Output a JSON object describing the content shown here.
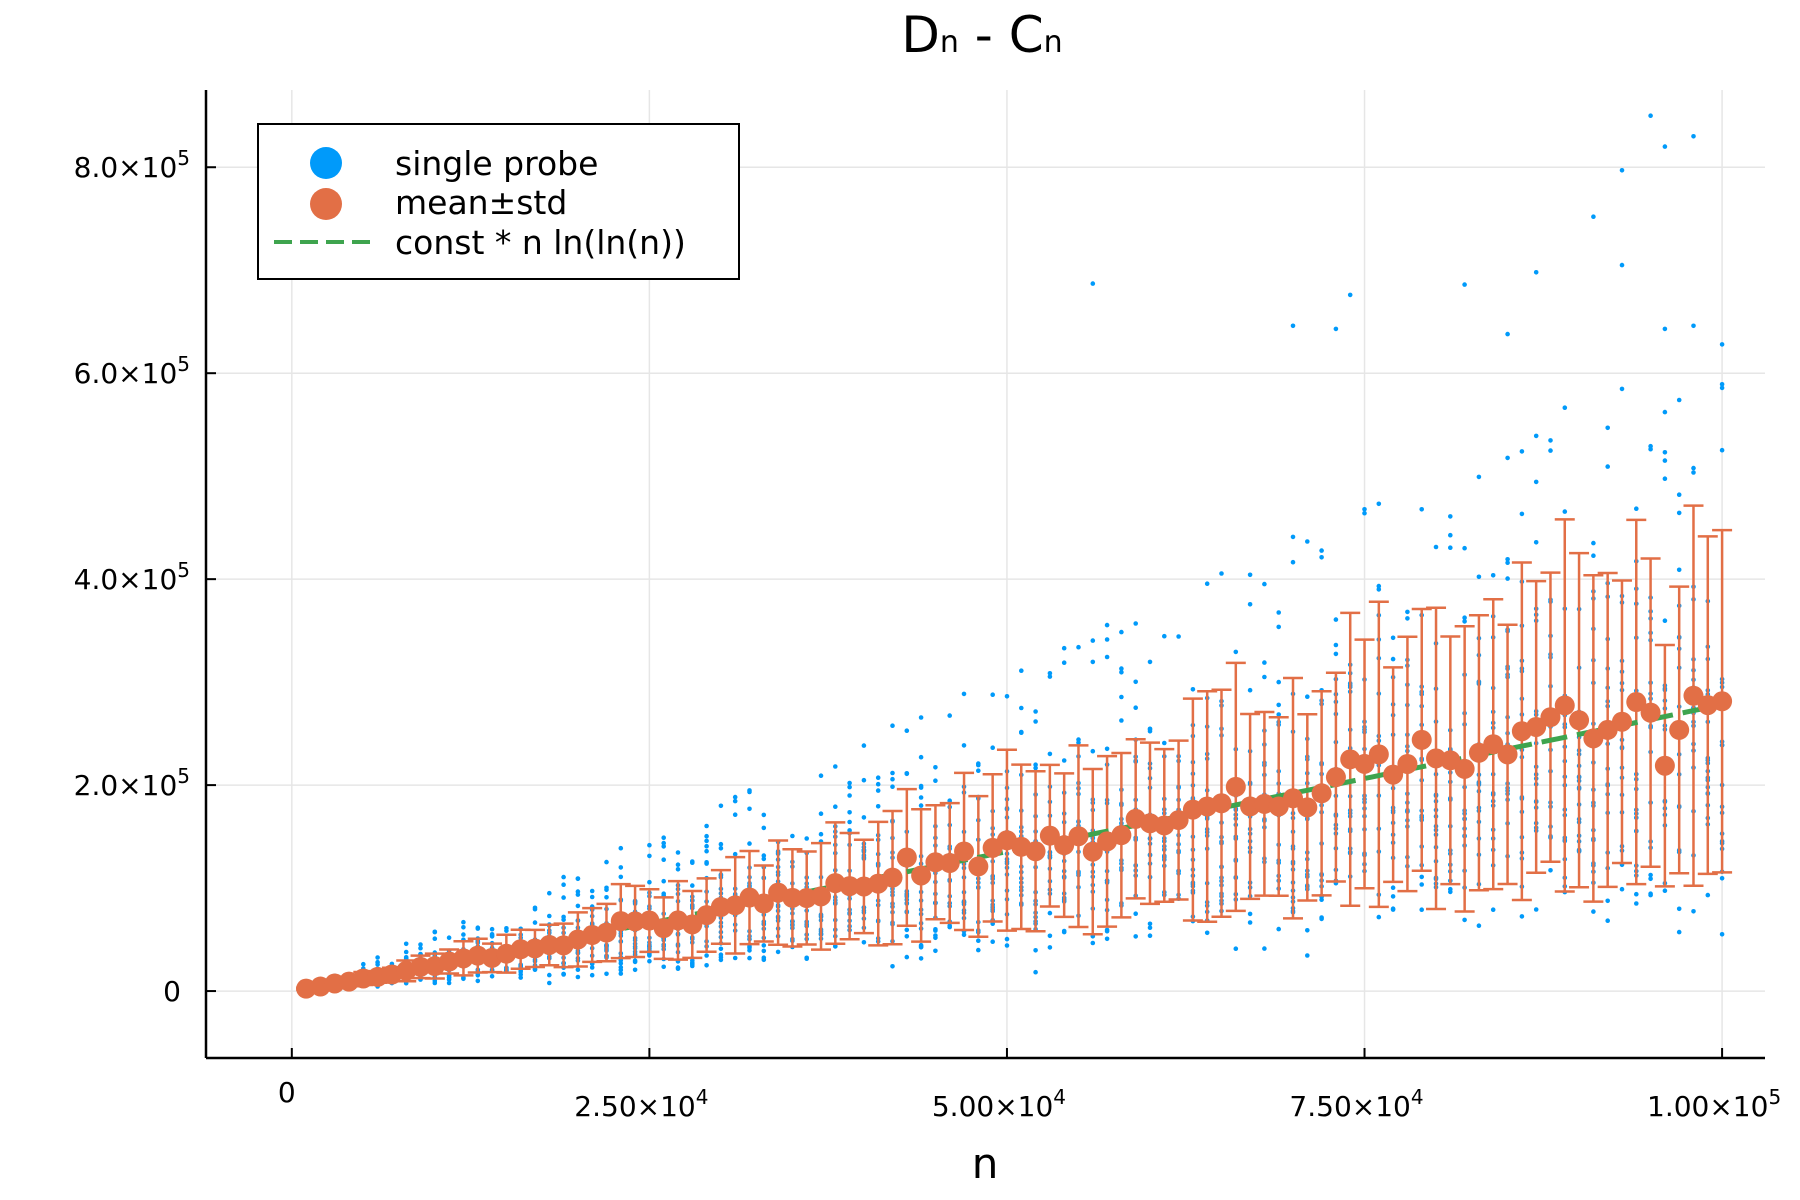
{
  "chart_data": {
    "type": "scatter",
    "title": {
      "main": "D",
      "sub1": "n",
      "mid": " - C",
      "sub2": "n"
    },
    "xlabel": "n",
    "ylabel": "",
    "xlim": [
      -6000,
      103000
    ],
    "ylim": [
      -65000,
      875000
    ],
    "grid": true,
    "legend_position": "top-left",
    "x_ticks": [
      {
        "value": 0,
        "mant": "0",
        "exp": ""
      },
      {
        "value": 25000,
        "mant": "2.50×10",
        "exp": "4"
      },
      {
        "value": 50000,
        "mant": "5.00×10",
        "exp": "4"
      },
      {
        "value": 75000,
        "mant": "7.50×10",
        "exp": "4"
      },
      {
        "value": 100000,
        "mant": "1.00×10",
        "exp": "5"
      }
    ],
    "y_ticks": [
      {
        "value": 0,
        "mant": "0",
        "exp": ""
      },
      {
        "value": 200000,
        "mant": "2.0×10",
        "exp": "5"
      },
      {
        "value": 400000,
        "mant": "4.0×10",
        "exp": "5"
      },
      {
        "value": 600000,
        "mant": "6.0×10",
        "exp": "5"
      },
      {
        "value": 800000,
        "mant": "8.0×10",
        "exp": "5"
      }
    ],
    "series": [
      {
        "name": "single probe",
        "kind": "scatter",
        "color": "#009AFA",
        "points_per_x": 20,
        "x_step": 1000,
        "x_count": 100,
        "notable_outliers": [
          [
            95000,
            850000
          ],
          [
            98000,
            830000
          ],
          [
            96000,
            820000
          ],
          [
            93000,
            797000
          ],
          [
            91000,
            752000
          ],
          [
            93000,
            705000
          ],
          [
            87000,
            698000
          ],
          [
            56000,
            687000
          ],
          [
            82000,
            686000
          ],
          [
            74000,
            676000
          ],
          [
            70000,
            646000
          ],
          [
            73000,
            643000
          ],
          [
            98000,
            646000
          ],
          [
            96000,
            643000
          ],
          [
            85000,
            638000
          ],
          [
            100000,
            628000
          ]
        ]
      },
      {
        "name": "mean±std",
        "kind": "errorbar",
        "color": "#E26F46",
        "marker_x_step": 1000,
        "marker_count": 100,
        "std_ratio_start": 0.45,
        "std_ratio_end": 0.6
      },
      {
        "name": "const * n ln(ln(n))",
        "kind": "line",
        "style": "dashed",
        "color": "#3EA44E",
        "const": 1.138
      }
    ]
  }
}
